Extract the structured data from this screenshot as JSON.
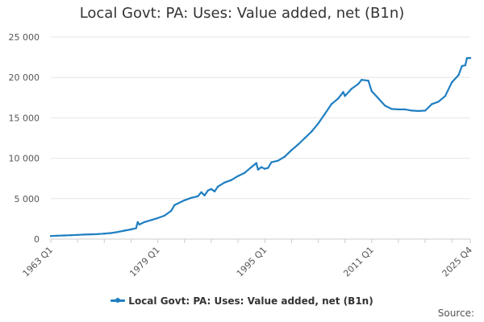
{
  "chart_data": {
    "type": "line",
    "title": "Local Govt: PA: Uses: Value added, net (B1n)",
    "xlabel": "",
    "ylabel": "",
    "ylim": [
      0,
      25000
    ],
    "yticks": [
      0,
      5000,
      10000,
      15000,
      20000,
      25000
    ],
    "ytick_labels": [
      "0",
      "5 000",
      "10 000",
      "15 000",
      "20 000",
      "25 000"
    ],
    "xticks": [
      1963.0,
      1979.0,
      1995.0,
      2011.0,
      2025.75
    ],
    "xtick_labels": [
      "1963 Q1",
      "1979 Q1",
      "1995 Q1",
      "2011 Q1",
      "2025 Q4"
    ],
    "xlim": [
      1963.0,
      2025.75
    ],
    "grid": "horizontal",
    "legend_position": "bottom",
    "color": "#1f7fc1",
    "series": [
      {
        "name": "Local Govt: PA: Uses: Value added, net (B1n)",
        "points": [
          [
            1963.0,
            380
          ],
          [
            1964.0,
            420
          ],
          [
            1965.0,
            450
          ],
          [
            1966.0,
            480
          ],
          [
            1967.0,
            520
          ],
          [
            1968.0,
            560
          ],
          [
            1969.0,
            590
          ],
          [
            1970.0,
            620
          ],
          [
            1971.0,
            680
          ],
          [
            1972.0,
            750
          ],
          [
            1973.0,
            880
          ],
          [
            1974.0,
            1050
          ],
          [
            1975.0,
            1200
          ],
          [
            1975.75,
            1350
          ],
          [
            1976.0,
            2100
          ],
          [
            1976.25,
            1800
          ],
          [
            1977.0,
            2100
          ],
          [
            1978.0,
            2350
          ],
          [
            1979.0,
            2600
          ],
          [
            1980.0,
            2900
          ],
          [
            1981.0,
            3500
          ],
          [
            1981.5,
            4200
          ],
          [
            1982.0,
            4400
          ],
          [
            1983.0,
            4800
          ],
          [
            1984.0,
            5100
          ],
          [
            1985.0,
            5300
          ],
          [
            1985.5,
            5800
          ],
          [
            1986.0,
            5400
          ],
          [
            1986.5,
            6000
          ],
          [
            1987.0,
            6200
          ],
          [
            1987.5,
            5900
          ],
          [
            1988.0,
            6500
          ],
          [
            1989.0,
            7000
          ],
          [
            1990.0,
            7300
          ],
          [
            1991.0,
            7800
          ],
          [
            1992.0,
            8200
          ],
          [
            1993.0,
            8900
          ],
          [
            1993.75,
            9400
          ],
          [
            1994.0,
            8600
          ],
          [
            1994.5,
            8900
          ],
          [
            1995.0,
            8700
          ],
          [
            1995.5,
            8800
          ],
          [
            1996.0,
            9500
          ],
          [
            1997.0,
            9700
          ],
          [
            1998.0,
            10200
          ],
          [
            1999.0,
            11000
          ],
          [
            2000.0,
            11700
          ],
          [
            2001.0,
            12500
          ],
          [
            2002.0,
            13300
          ],
          [
            2003.0,
            14300
          ],
          [
            2004.0,
            15500
          ],
          [
            2005.0,
            16700
          ],
          [
            2006.0,
            17400
          ],
          [
            2006.75,
            18200
          ],
          [
            2007.0,
            17700
          ],
          [
            2008.0,
            18600
          ],
          [
            2009.0,
            19200
          ],
          [
            2009.5,
            19700
          ],
          [
            2010.5,
            19600
          ],
          [
            2011.0,
            18300
          ],
          [
            2012.0,
            17400
          ],
          [
            2013.0,
            16500
          ],
          [
            2014.0,
            16100
          ],
          [
            2015.0,
            16050
          ],
          [
            2016.0,
            16050
          ],
          [
            2017.0,
            15900
          ],
          [
            2018.0,
            15850
          ],
          [
            2019.0,
            15900
          ],
          [
            2020.0,
            16700
          ],
          [
            2021.0,
            17000
          ],
          [
            2022.0,
            17700
          ],
          [
            2023.0,
            19400
          ],
          [
            2024.0,
            20300
          ],
          [
            2024.5,
            21400
          ],
          [
            2025.0,
            21500
          ],
          [
            2025.25,
            22400
          ],
          [
            2025.75,
            22400
          ]
        ]
      }
    ],
    "legend": [
      "Local Govt: PA: Uses: Value added, net (B1n)"
    ]
  },
  "footer": {
    "source_label": "Source:"
  }
}
